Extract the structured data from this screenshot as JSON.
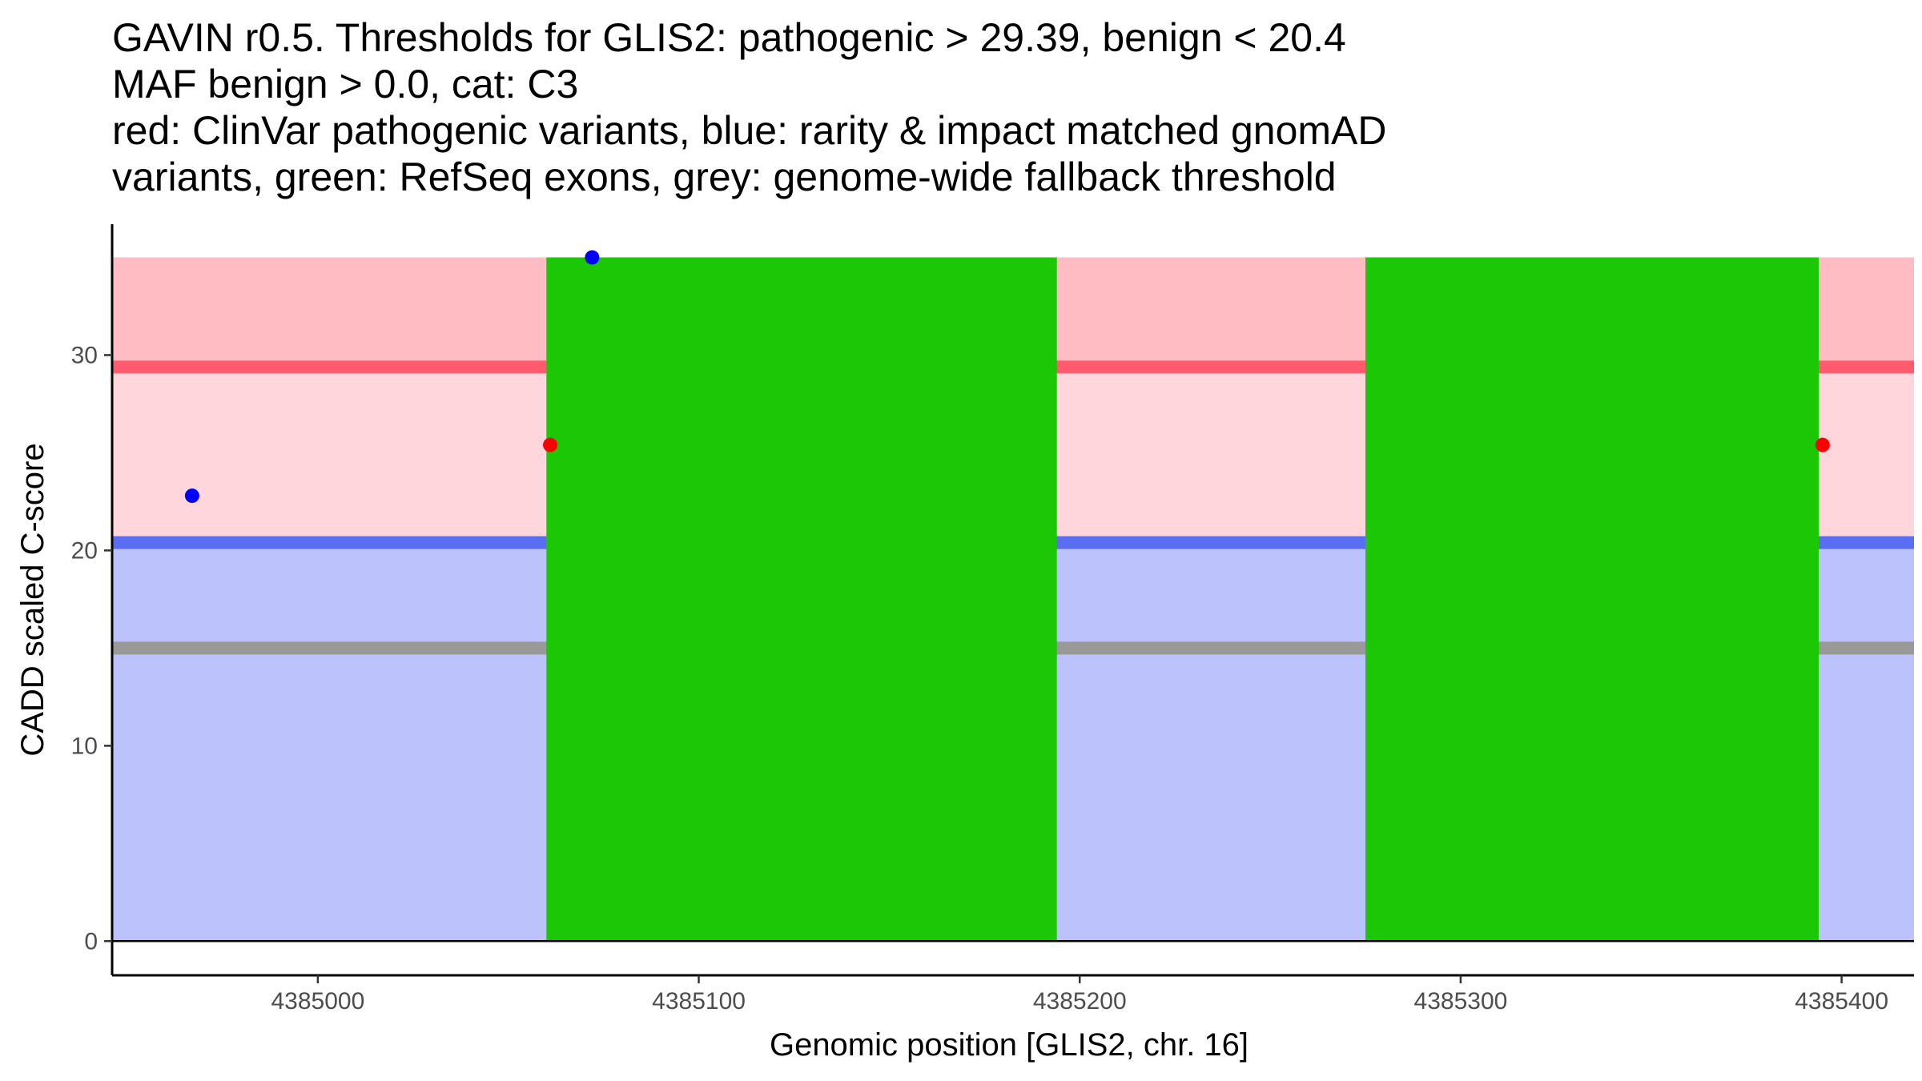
{
  "chart_data": {
    "type": "scatter",
    "title_lines": [
      "GAVIN r0.5. Thresholds for GLIS2: pathogenic > 29.39, benign < 20.4",
      "MAF benign > 0.0, cat: C3",
      "red: ClinVar pathogenic variants, blue: rarity & impact matched gnomAD",
      "variants, green: RefSeq exons, grey: genome-wide fallback threshold"
    ],
    "xlabel": "Genomic position [GLIS2, chr. 16]",
    "ylabel": "CADD scaled C-score",
    "xlim": [
      4384946,
      4385419
    ],
    "ylim": [
      -1.75,
      36.7
    ],
    "x_ticks": [
      4385000,
      4385100,
      4385200,
      4385300,
      4385400
    ],
    "y_ticks": [
      0,
      10,
      20,
      30
    ],
    "bands": [
      {
        "name": "benign-region",
        "y0": 0,
        "y1": 20.4,
        "color": "#bbc2fc"
      },
      {
        "name": "uncertain-region",
        "y0": 20.4,
        "y1": 29.39,
        "color": "#ffd6dc"
      },
      {
        "name": "pathogenic-region",
        "y0": 29.39,
        "y1": 35,
        "color": "#ffbcc2"
      }
    ],
    "threshold_lines": [
      {
        "name": "pathogenic-threshold",
        "y": 29.39,
        "color": "#ff5a6e"
      },
      {
        "name": "benign-threshold",
        "y": 20.4,
        "color": "#5a6ef2"
      },
      {
        "name": "fallback-threshold",
        "y": 15,
        "color": "#999999"
      }
    ],
    "exons": [
      {
        "start": 4385060,
        "end": 4385194,
        "y0": 0,
        "y1": 35,
        "color": "#1cc805"
      },
      {
        "start": 4385275,
        "end": 4385394,
        "y0": 0,
        "y1": 35,
        "color": "#1cc805"
      }
    ],
    "series": [
      {
        "name": "ClinVar pathogenic variants",
        "color": "#ff0000",
        "points": [
          {
            "x": 4385061,
            "y": 25.4
          },
          {
            "x": 4385395,
            "y": 25.4
          }
        ]
      },
      {
        "name": "matched gnomAD variants",
        "color": "#0000ff",
        "points": [
          {
            "x": 4384967,
            "y": 22.8
          },
          {
            "x": 4385072,
            "y": 35
          }
        ]
      }
    ]
  }
}
